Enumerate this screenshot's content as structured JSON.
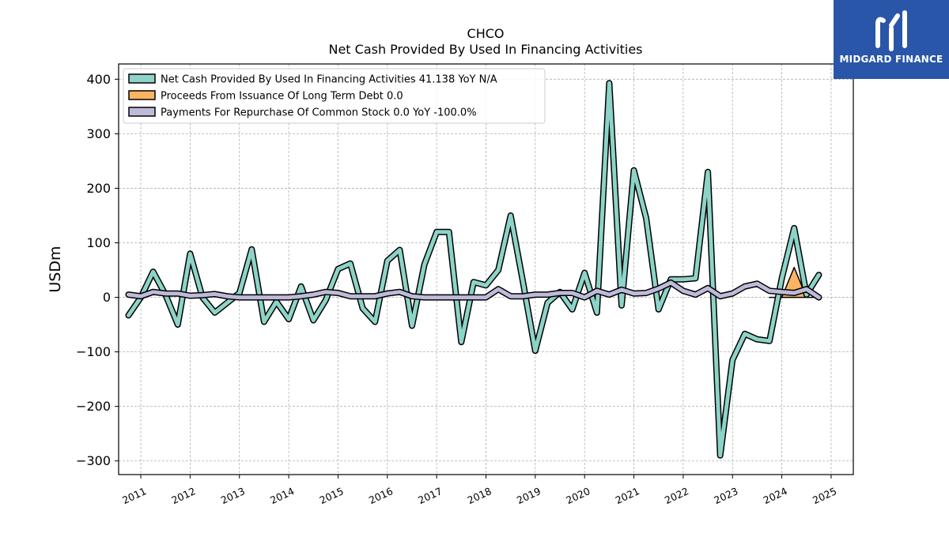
{
  "brand": {
    "name": "MIDGARD FINANCE",
    "logo_icon": "midgard-m-logo-icon",
    "background_color": "#2956a8"
  },
  "chart_data": {
    "type": "line",
    "title": "CHCO",
    "subtitle": "Net Cash Provided By Used In Financing Activities",
    "xlabel": "",
    "ylabel": "USDm",
    "ylim": [
      -325,
      428
    ],
    "xlim": [
      2010.55,
      2025.45
    ],
    "yticks": [
      400,
      300,
      200,
      100,
      0,
      -100,
      -200,
      -300
    ],
    "ytick_labels": [
      "400",
      "300",
      "200",
      "100",
      "0",
      "−100",
      "−200",
      "−300"
    ],
    "xticks": [
      2011,
      2012,
      2013,
      2014,
      2015,
      2016,
      2017,
      2018,
      2019,
      2020,
      2021,
      2022,
      2023,
      2024,
      2025
    ],
    "xtick_labels": [
      "2011",
      "2012",
      "2013",
      "2014",
      "2015",
      "2016",
      "2017",
      "2018",
      "2019",
      "2020",
      "2021",
      "2022",
      "2023",
      "2024",
      "2025"
    ],
    "grid": true,
    "legend_position": "top-left",
    "series": [
      {
        "name": "Net Cash Provided By Used In Financing Activities",
        "legend_label": "Net Cash Provided By Used In Financing Activities  41.138 YoY N/A",
        "color": "#8dd3c7",
        "style": "line",
        "x": [
          2010.75,
          2011.0,
          2011.25,
          2011.5,
          2011.75,
          2012.0,
          2012.25,
          2012.5,
          2012.75,
          2013.0,
          2013.25,
          2013.5,
          2013.75,
          2014.0,
          2014.25,
          2014.5,
          2014.75,
          2015.0,
          2015.25,
          2015.5,
          2015.75,
          2016.0,
          2016.25,
          2016.5,
          2016.75,
          2017.0,
          2017.25,
          2017.5,
          2017.75,
          2018.0,
          2018.25,
          2018.5,
          2018.75,
          2019.0,
          2019.25,
          2019.5,
          2019.75,
          2020.0,
          2020.25,
          2020.5,
          2020.75,
          2021.0,
          2021.25,
          2021.5,
          2021.75,
          2022.0,
          2022.25,
          2022.5,
          2022.75,
          2023.0,
          2023.25,
          2023.5,
          2023.75,
          2024.0,
          2024.25,
          2024.5,
          2024.75
        ],
        "values": [
          -33,
          0,
          47,
          5,
          -50,
          80,
          0,
          -28,
          -10,
          8,
          88,
          -45,
          -8,
          -40,
          20,
          -42,
          -5,
          52,
          62,
          -20,
          -45,
          67,
          87,
          -52,
          60,
          120,
          120,
          -82,
          28,
          22,
          50,
          150,
          28,
          -98,
          -10,
          10,
          -22,
          45,
          -28,
          393,
          -15,
          233,
          145,
          -22,
          33,
          33,
          35,
          230,
          -290,
          -115,
          -67,
          -77,
          -80,
          35,
          127,
          5,
          41.138
        ]
      },
      {
        "name": "Proceeds From Issuance Of Long Term Debt",
        "legend_label": "Proceeds From Issuance Of Long Term Debt  0.0",
        "color": "#fdb462",
        "style": "area",
        "x": [
          2023.75,
          2024.0,
          2024.25,
          2024.5,
          2024.75
        ],
        "values": [
          0,
          0,
          55,
          0,
          0
        ]
      },
      {
        "name": "Payments For Repurchase Of Common Stock",
        "legend_label": "Payments For Repurchase Of Common Stock  0.0 YoY -100.0%",
        "color": "#bebada",
        "style": "line",
        "x": [
          2010.75,
          2011.0,
          2011.25,
          2011.5,
          2011.75,
          2012.0,
          2012.25,
          2012.5,
          2012.75,
          2013.0,
          2013.25,
          2013.5,
          2013.75,
          2014.0,
          2014.25,
          2014.5,
          2014.75,
          2015.0,
          2015.25,
          2015.5,
          2015.75,
          2016.0,
          2016.25,
          2016.5,
          2016.75,
          2017.0,
          2017.25,
          2017.5,
          2017.75,
          2018.0,
          2018.25,
          2018.5,
          2018.75,
          2019.0,
          2019.25,
          2019.5,
          2019.75,
          2020.0,
          2020.25,
          2020.5,
          2020.75,
          2021.0,
          2021.25,
          2021.5,
          2021.75,
          2022.0,
          2022.25,
          2022.5,
          2022.75,
          2023.0,
          2023.25,
          2023.5,
          2023.75,
          2024.0,
          2024.25,
          2024.5,
          2024.75
        ],
        "values": [
          5,
          2,
          10,
          7,
          7,
          3,
          4,
          6,
          2,
          0,
          0,
          0,
          0,
          0,
          2,
          5,
          10,
          8,
          2,
          2,
          2,
          7,
          10,
          2,
          0,
          0,
          0,
          0,
          0,
          0,
          15,
          2,
          2,
          5,
          5,
          8,
          8,
          0,
          12,
          5,
          14,
          7,
          8,
          16,
          27,
          12,
          5,
          17,
          2,
          7,
          20,
          25,
          12,
          10,
          8,
          15,
          0
        ]
      }
    ]
  }
}
